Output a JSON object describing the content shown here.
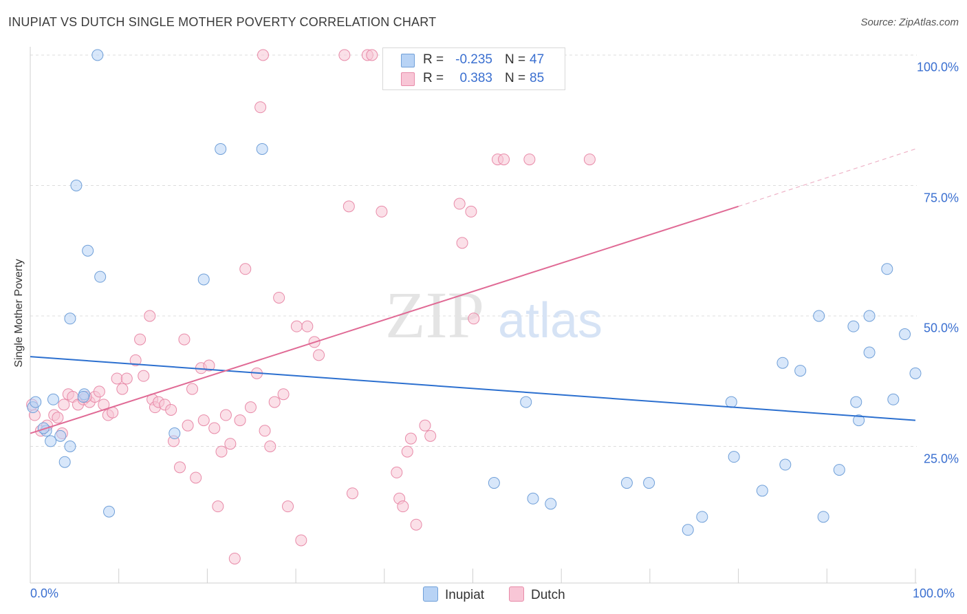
{
  "header": {
    "title": "INUPIAT VS DUTCH SINGLE MOTHER POVERTY CORRELATION CHART",
    "source": "Source: ZipAtlas.com"
  },
  "watermark": {
    "zip": "ZIP",
    "atlas": "atlas"
  },
  "stats": {
    "r_label": "R =",
    "n_label": "N =",
    "rows": [
      {
        "name": "Inupiat",
        "r": "-0.235",
        "n": "47"
      },
      {
        "name": "Dutch",
        "r": "0.383",
        "n": "85"
      }
    ]
  },
  "legend": {
    "items": [
      "Inupiat",
      "Dutch"
    ]
  },
  "colors": {
    "inupiat_fill": "#b8d3f5",
    "inupiat_stroke": "#6f9fd8",
    "inupiat_line": "#2b6fcf",
    "dutch_fill": "#f8c6d6",
    "dutch_stroke": "#e88aa8",
    "dutch_line": "#e06a95",
    "tick_text": "#3a6fd0"
  },
  "chart_data": {
    "type": "scatter",
    "title": "INUPIAT VS DUTCH SINGLE MOTHER POVERTY CORRELATION CHART",
    "xlabel": "",
    "ylabel": "Single Mother Poverty",
    "xlim": [
      0,
      100
    ],
    "ylim": [
      0,
      100
    ],
    "x_tick_labels": [
      "0.0%",
      "100.0%"
    ],
    "y_ticks": [
      25,
      50,
      75,
      100
    ],
    "y_tick_labels": [
      "25.0%",
      "50.0%",
      "75.0%",
      "100.0%"
    ],
    "grid": "horizontal dashed",
    "series": [
      {
        "name": "Inupiat",
        "r": -0.235,
        "n": 47,
        "trend": {
          "x0": 0,
          "y0": 42.2,
          "x1": 100,
          "y1": 30.0
        },
        "points": [
          [
            0.3,
            32.5
          ],
          [
            0.6,
            33.5
          ],
          [
            1.8,
            28.0
          ],
          [
            1.5,
            28.5
          ],
          [
            2.3,
            26.0
          ],
          [
            2.6,
            34.0
          ],
          [
            3.4,
            27.0
          ],
          [
            3.9,
            22.0
          ],
          [
            4.5,
            25.0
          ],
          [
            4.5,
            49.5
          ],
          [
            6.1,
            35.0
          ],
          [
            6.0,
            34.5
          ],
          [
            6.5,
            62.5
          ],
          [
            7.6,
            100.0
          ],
          [
            7.9,
            57.5
          ],
          [
            8.9,
            12.5
          ],
          [
            5.2,
            75.0
          ],
          [
            16.3,
            27.5
          ],
          [
            19.6,
            57.0
          ],
          [
            21.5,
            82.0
          ],
          [
            26.2,
            82.0
          ],
          [
            52.4,
            18.0
          ],
          [
            56.0,
            33.5
          ],
          [
            56.8,
            15.0
          ],
          [
            58.8,
            14.0
          ],
          [
            67.4,
            18.0
          ],
          [
            69.9,
            18.0
          ],
          [
            74.3,
            9.0
          ],
          [
            75.9,
            11.5
          ],
          [
            79.2,
            33.5
          ],
          [
            79.5,
            23.0
          ],
          [
            82.7,
            16.5
          ],
          [
            85.0,
            41.0
          ],
          [
            85.3,
            21.5
          ],
          [
            87.0,
            39.5
          ],
          [
            89.1,
            50.0
          ],
          [
            89.6,
            11.5
          ],
          [
            91.4,
            20.5
          ],
          [
            93.0,
            48.0
          ],
          [
            93.3,
            33.5
          ],
          [
            93.6,
            30.0
          ],
          [
            94.8,
            43.0
          ],
          [
            94.8,
            50.0
          ],
          [
            96.8,
            59.0
          ],
          [
            97.5,
            34.0
          ],
          [
            98.8,
            46.5
          ],
          [
            100.0,
            39.0
          ]
        ]
      },
      {
        "name": "Dutch",
        "r": 0.383,
        "n": 85,
        "trend": {
          "x0": 0,
          "y0": 27.5,
          "x1": 80,
          "y1": 71.0,
          "dashed_to_x": 100,
          "dashed_to_y": 82.0
        },
        "points": [
          [
            0.2,
            33.0
          ],
          [
            0.5,
            31.0
          ],
          [
            1.2,
            28.0
          ],
          [
            1.9,
            29.0
          ],
          [
            2.7,
            31.0
          ],
          [
            3.1,
            30.5
          ],
          [
            3.8,
            33.0
          ],
          [
            4.3,
            35.0
          ],
          [
            4.8,
            34.5
          ],
          [
            5.4,
            33.0
          ],
          [
            6.0,
            34.0
          ],
          [
            6.7,
            33.5
          ],
          [
            7.3,
            34.5
          ],
          [
            7.8,
            35.5
          ],
          [
            8.3,
            33.0
          ],
          [
            8.8,
            31.0
          ],
          [
            9.3,
            31.5
          ],
          [
            9.8,
            38.0
          ],
          [
            10.4,
            36.0
          ],
          [
            10.9,
            38.0
          ],
          [
            11.9,
            41.5
          ],
          [
            12.4,
            45.5
          ],
          [
            12.8,
            38.5
          ],
          [
            13.5,
            50.0
          ],
          [
            13.8,
            34.0
          ],
          [
            14.1,
            32.5
          ],
          [
            14.5,
            33.5
          ],
          [
            15.2,
            33.0
          ],
          [
            15.9,
            32.0
          ],
          [
            16.2,
            26.0
          ],
          [
            16.9,
            21.0
          ],
          [
            17.4,
            45.5
          ],
          [
            17.8,
            29.0
          ],
          [
            18.3,
            36.0
          ],
          [
            18.7,
            19.0
          ],
          [
            19.3,
            40.0
          ],
          [
            19.6,
            30.0
          ],
          [
            20.2,
            40.5
          ],
          [
            20.8,
            28.5
          ],
          [
            21.2,
            13.5
          ],
          [
            21.6,
            24.0
          ],
          [
            22.1,
            31.0
          ],
          [
            22.6,
            25.5
          ],
          [
            23.1,
            3.5
          ],
          [
            23.7,
            30.0
          ],
          [
            24.3,
            59.0
          ],
          [
            24.9,
            32.5
          ],
          [
            25.6,
            39.0
          ],
          [
            26.0,
            90.0
          ],
          [
            26.5,
            28.0
          ],
          [
            27.1,
            25.0
          ],
          [
            27.6,
            33.5
          ],
          [
            28.1,
            53.5
          ],
          [
            28.6,
            35.0
          ],
          [
            29.1,
            13.5
          ],
          [
            30.1,
            48.0
          ],
          [
            30.6,
            7.0
          ],
          [
            31.3,
            48.0
          ],
          [
            32.1,
            45.0
          ],
          [
            32.6,
            42.5
          ],
          [
            26.3,
            100.0
          ],
          [
            35.5,
            100.0
          ],
          [
            36.0,
            71.0
          ],
          [
            36.4,
            16.0
          ],
          [
            38.1,
            100.0
          ],
          [
            38.6,
            100.0
          ],
          [
            39.7,
            70.0
          ],
          [
            41.4,
            20.0
          ],
          [
            41.7,
            15.0
          ],
          [
            42.1,
            13.5
          ],
          [
            42.6,
            24.0
          ],
          [
            43.0,
            26.5
          ],
          [
            43.6,
            10.0
          ],
          [
            44.6,
            29.0
          ],
          [
            45.2,
            27.0
          ],
          [
            48.5,
            71.5
          ],
          [
            48.8,
            64.0
          ],
          [
            49.8,
            70.0
          ],
          [
            50.1,
            49.5
          ],
          [
            52.8,
            80.0
          ],
          [
            53.5,
            80.0
          ],
          [
            56.4,
            80.0
          ],
          [
            63.2,
            80.0
          ],
          [
            6.3,
            34.5
          ],
          [
            3.6,
            27.5
          ]
        ]
      }
    ]
  }
}
